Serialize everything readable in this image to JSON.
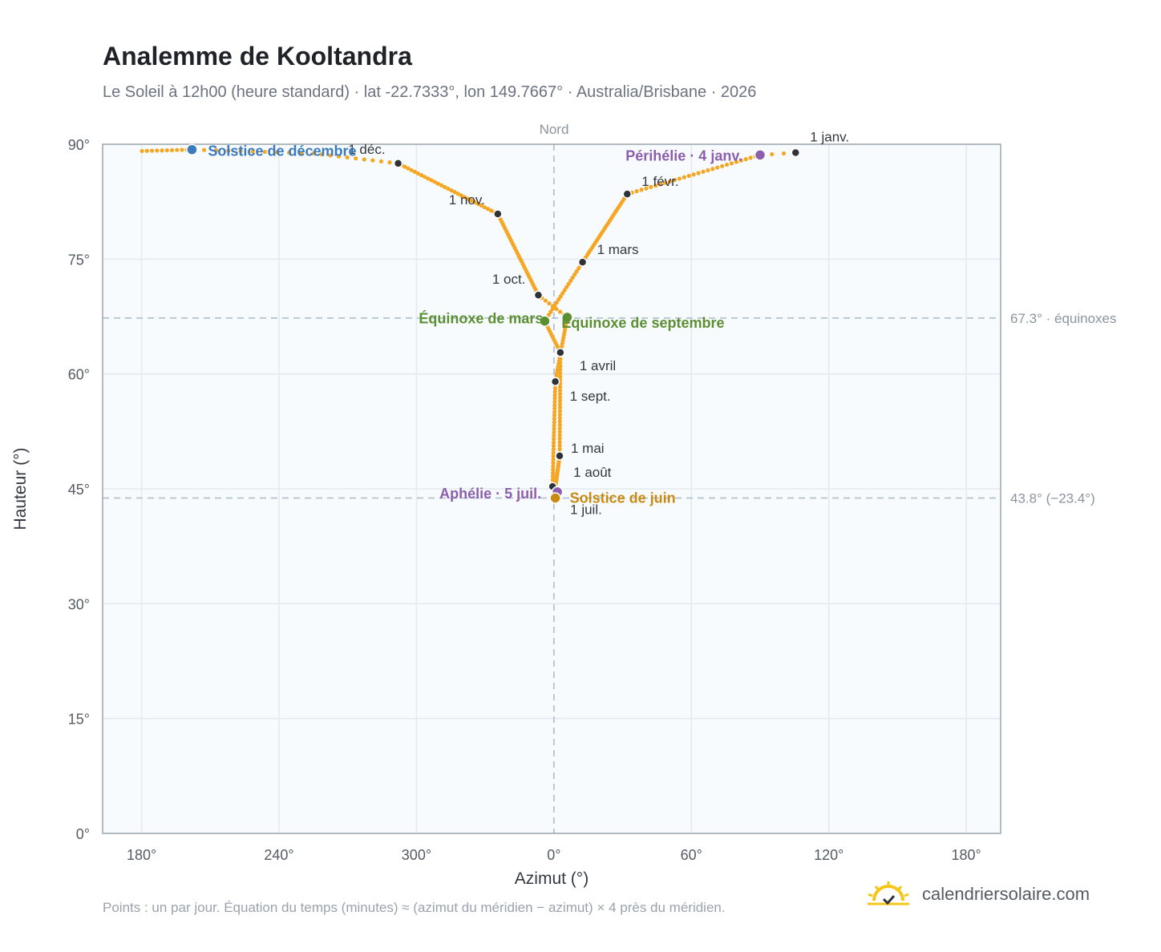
{
  "header": {
    "title": "Analemme de Kooltandra",
    "subtitle": "Le Soleil à 12h00 (heure standard) · lat -22.7333°, lon 149.7667° · Australia/Brisbane · 2026"
  },
  "footer": {
    "note": "Points : un par jour. Équation du temps (minutes) ≈ (azimut du méridien − azimut) × 4 près du méridien.",
    "brand": "calendriersolaire.com",
    "brand_icon": "sun-check-icon"
  },
  "chart_data": {
    "type": "scatter",
    "title": "Analemme de Kooltandra",
    "xlabel": "Azimut (°)",
    "ylabel": "Hauteur (°)",
    "x_axis_offsets": [
      -180,
      -120,
      -60,
      0,
      60,
      120,
      180
    ],
    "x_ticks": [
      "180°",
      "240°",
      "300°",
      "0°",
      "60°",
      "120°",
      "180°"
    ],
    "xlim": [
      -197,
      195
    ],
    "ylim": [
      0,
      90
    ],
    "y_ticks": [
      0,
      15,
      30,
      45,
      60,
      75,
      90
    ],
    "y_tick_labels": [
      "0°",
      "15°",
      "30°",
      "45°",
      "60°",
      "75°",
      "90°"
    ],
    "north_label": "Nord",
    "grid": true,
    "colors": {
      "analemma": "#f5a623",
      "month": "#2f3338",
      "equinox": "#5b8f32",
      "dec_solstice": "#3a7abf",
      "jun_solstice": "#c98a12",
      "apsis": "#8b5fae",
      "reference": "#b4c3cf"
    },
    "reference_lines": [
      {
        "y": 67.3,
        "label": "67.3° · équinoxes"
      },
      {
        "y": 43.8,
        "label": "43.8° (−23.4°)"
      }
    ],
    "month_markers": [
      {
        "label": "1 janv.",
        "x": 105.5,
        "y": 88.9
      },
      {
        "label": "1 févr.",
        "x": 32,
        "y": 83.5
      },
      {
        "label": "1 mars",
        "x": 12.5,
        "y": 74.6
      },
      {
        "label": "1 avril",
        "x": 2.8,
        "y": 62.8
      },
      {
        "label": "1 mai",
        "x": 2.5,
        "y": 49.3
      },
      {
        "label": "1 juil.",
        "x": 0.8,
        "y": 43.8
      },
      {
        "label": "1 août",
        "x": -0.6,
        "y": 45.3
      },
      {
        "label": "1 sept.",
        "x": 0.6,
        "y": 59.0
      },
      {
        "label": "1 oct.",
        "x": -6.8,
        "y": 70.3
      },
      {
        "label": "1 nov.",
        "x": -24.5,
        "y": 80.9
      },
      {
        "label": "1 déc.",
        "x": -68,
        "y": 87.5
      }
    ],
    "events": [
      {
        "label": "Solstice de décembre",
        "x": -158,
        "y": 89.3
      },
      {
        "label": "Périhélie · 4 janv.",
        "x": 90,
        "y": 88.6
      },
      {
        "label": "Équinoxe de mars",
        "x": -4,
        "y": 66.9
      },
      {
        "label": "Équinoxe de septembre",
        "x": 5.8,
        "y": 67.4
      },
      {
        "label": "Aphélie · 5 juil.",
        "x": 1.5,
        "y": 44.6
      },
      {
        "label": "Solstice de juin",
        "x": 0.6,
        "y": 43.8
      }
    ]
  }
}
